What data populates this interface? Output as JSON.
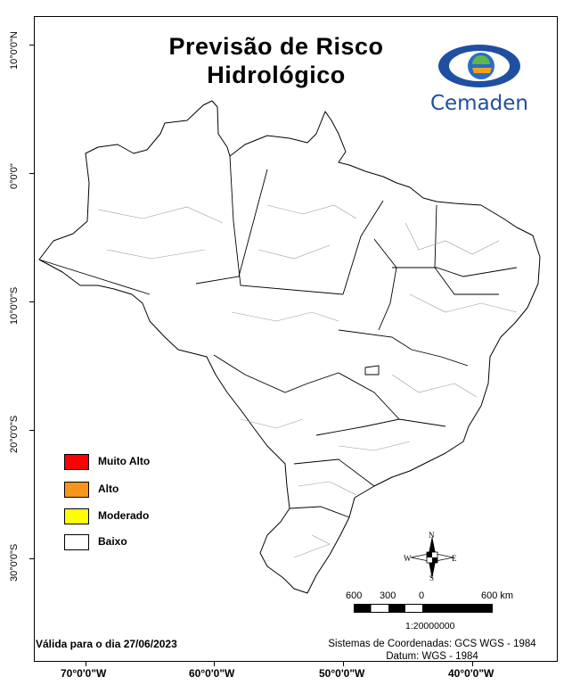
{
  "title_line1": "Previsão de Risco",
  "title_line2": "Hidrológico",
  "logo_text": "Cemaden",
  "legend": [
    {
      "label": "Muito Alto",
      "color": "#ff0000"
    },
    {
      "label": "Alto",
      "color": "#f7941d"
    },
    {
      "label": "Moderado",
      "color": "#ffff00"
    },
    {
      "label": "Baixo",
      "color": "#ffffff"
    }
  ],
  "lat_labels": [
    "10°0'0\"N",
    "0°0'0\"",
    "10°0'0\"S",
    "20°0'0\"S",
    "30°0'0\"S"
  ],
  "lon_labels": [
    "70°0'0\"W",
    "60°0'0\"W",
    "50°0'0\"W",
    "40°0'0\"W"
  ],
  "compass": {
    "n": "N",
    "s": "S",
    "e": "E",
    "w": "W"
  },
  "scale_labels": [
    "600",
    "300",
    "0",
    "600 km"
  ],
  "scale_ratio": "1:20000000",
  "valid_text": "Válida para o dia 27/06/2023",
  "coord_line1": "Sistemas de Coordenadas: GCS WGS - 1984",
  "coord_line2": "Datum: WGS - 1984"
}
